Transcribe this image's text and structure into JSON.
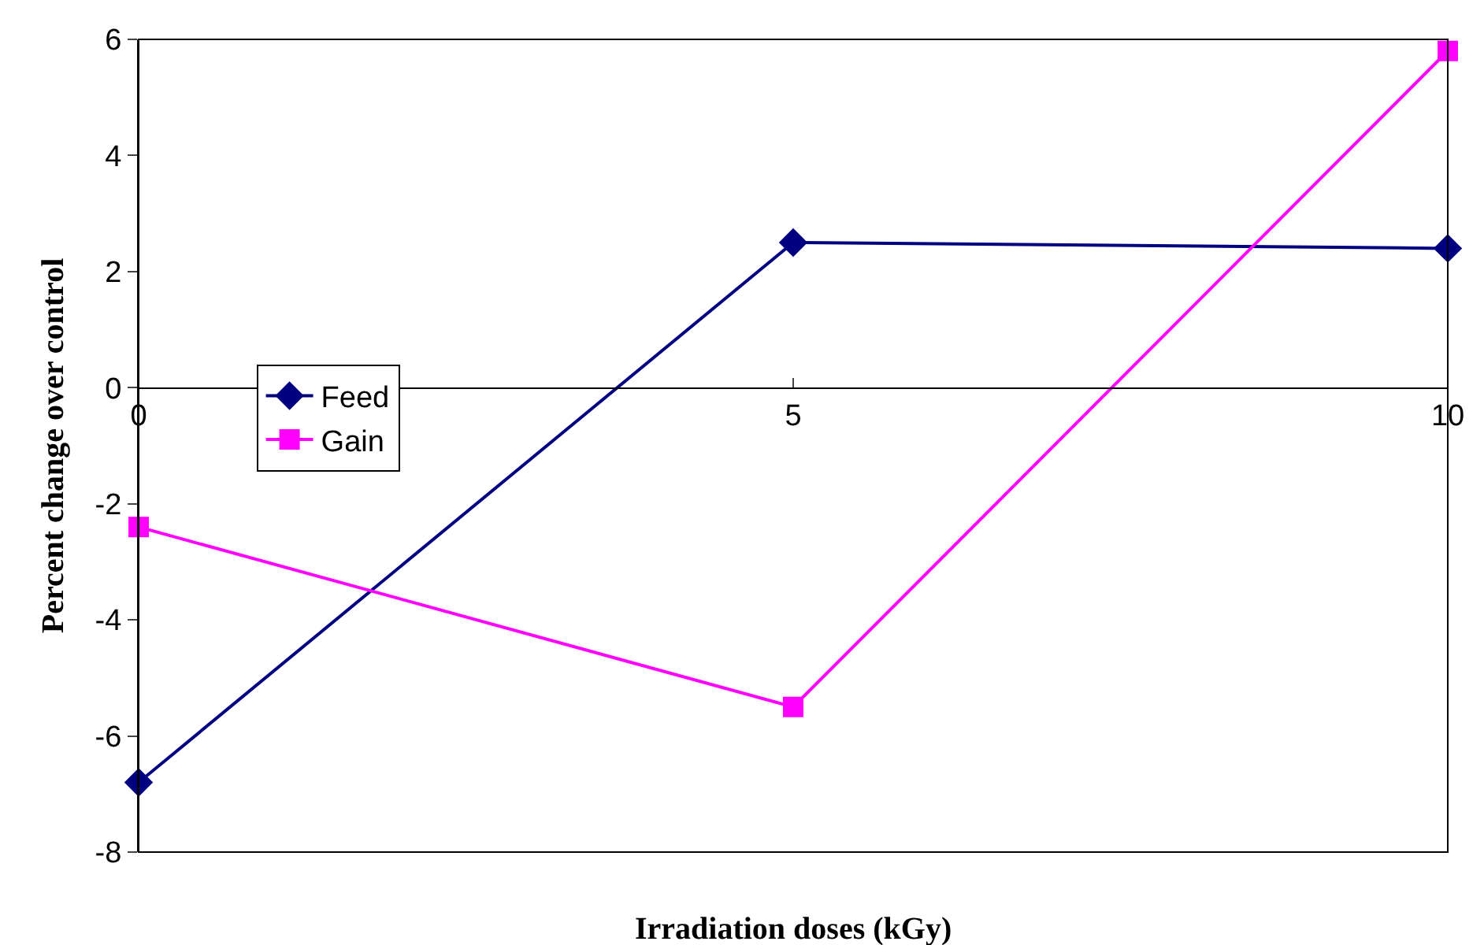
{
  "chart_data": {
    "type": "line",
    "xlabel": "Irradiation doses (kGy)",
    "ylabel": "Percent change over control",
    "x": [
      0,
      5,
      10
    ],
    "series": [
      {
        "name": "Feed",
        "color": "#000080",
        "values": [
          -6.8,
          2.5,
          2.4
        ],
        "marker": "diamond"
      },
      {
        "name": "Gain",
        "color": "#ff00ff",
        "values": [
          -2.4,
          -5.5,
          5.8
        ],
        "marker": "square"
      }
    ],
    "xlim": [
      0,
      10
    ],
    "xticks": [
      0,
      5,
      10
    ],
    "ylim": [
      -8,
      6
    ],
    "yticks": [
      -8,
      -6,
      -4,
      -2,
      0,
      2,
      4,
      6
    ],
    "legend": "left",
    "line_style": "solid"
  }
}
